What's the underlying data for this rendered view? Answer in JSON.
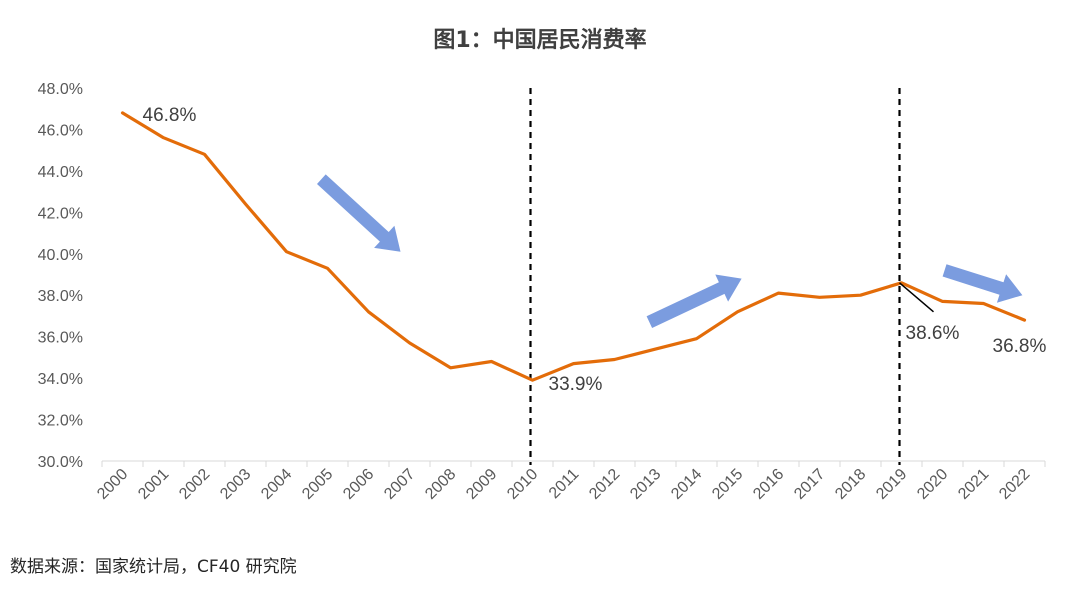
{
  "title": "图1：中国居民消费率",
  "source": "数据来源：国家统计局，CF40 研究院",
  "chart_data": {
    "type": "line",
    "title": "图1：中国居民消费率",
    "xlabel": "",
    "ylabel": "",
    "categories": [
      "2000",
      "2001",
      "2002",
      "2003",
      "2004",
      "2005",
      "2006",
      "2007",
      "2008",
      "2009",
      "2010",
      "2011",
      "2012",
      "2013",
      "2014",
      "2015",
      "2016",
      "2017",
      "2018",
      "2019",
      "2020",
      "2021",
      "2022"
    ],
    "series": [
      {
        "values": [
          46.8,
          45.6,
          44.8,
          42.4,
          40.1,
          39.3,
          37.2,
          35.7,
          34.5,
          34.8,
          33.9,
          34.7,
          34.9,
          35.4,
          35.9,
          37.2,
          38.1,
          37.9,
          38.0,
          38.6,
          37.7,
          37.6,
          36.8
        ]
      }
    ],
    "ylim": [
      30,
      48
    ],
    "yticks": [
      "30.0%",
      "32.0%",
      "34.0%",
      "36.0%",
      "38.0%",
      "40.0%",
      "42.0%",
      "44.0%",
      "46.0%",
      "48.0%"
    ],
    "grid": false,
    "line_color": "#E36C09",
    "arrow_color": "#7B9CDF",
    "divider_years": [
      "2010",
      "2019"
    ],
    "annotations": [
      {
        "text": "46.8%",
        "year": "2000"
      },
      {
        "text": "33.9%",
        "year": "2010"
      },
      {
        "text": "38.6%",
        "year": "2019"
      },
      {
        "text": "36.8%",
        "year": "2022"
      }
    ]
  }
}
